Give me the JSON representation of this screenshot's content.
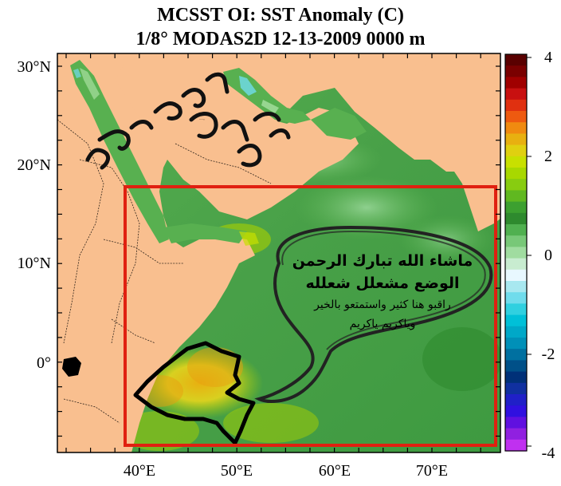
{
  "title": {
    "line1": "MCSST OI:  SST Anomaly (C)",
    "line2": "1/8° MODAS2D 12-13-2009 0000 m"
  },
  "axes": {
    "lat_labels": [
      "30°N",
      "20°N",
      "10°N",
      "0°"
    ],
    "lon_labels": [
      "40°E",
      "50°E",
      "60°E",
      "70°E"
    ]
  },
  "colorbar": {
    "min": -4,
    "max": 4,
    "labels": [
      "4",
      "2",
      "0",
      "-2",
      "-4"
    ],
    "colors_top_to_bottom": [
      "#5a0000",
      "#7a0000",
      "#a00000",
      "#c81010",
      "#e03010",
      "#ee5a10",
      "#f08a10",
      "#e8b010",
      "#e0d010",
      "#c8e000",
      "#a8d800",
      "#88cc10",
      "#60b820",
      "#3ca030",
      "#2e8a2e",
      "#50b050",
      "#78c878",
      "#a0dca0",
      "#c8ecd0",
      "#e8f8ff",
      "#a8e8f0",
      "#70dcec",
      "#30d0e0",
      "#00c0d8",
      "#00a8c8",
      "#0090b8",
      "#0070a0",
      "#005088",
      "#003078",
      "#1030a0",
      "#2020c8",
      "#3010e0",
      "#6010e0",
      "#9020e0",
      "#c030f0"
    ]
  },
  "annotations": {
    "handwriting_top": "ودراسة عميقة",
    "arabic_line1": "ماشاء الله تبارك الرحمن",
    "arabic_line2": "الوضع مشعلل شعلله",
    "arabic_line3": "راقبو هنا كثير واستمتعو بالخير",
    "arabic_line4": "وياكريم ياكريم"
  },
  "map_colors": {
    "land": "#f9bf8f",
    "ocean": "#4fa64f",
    "box": "#e02010"
  }
}
